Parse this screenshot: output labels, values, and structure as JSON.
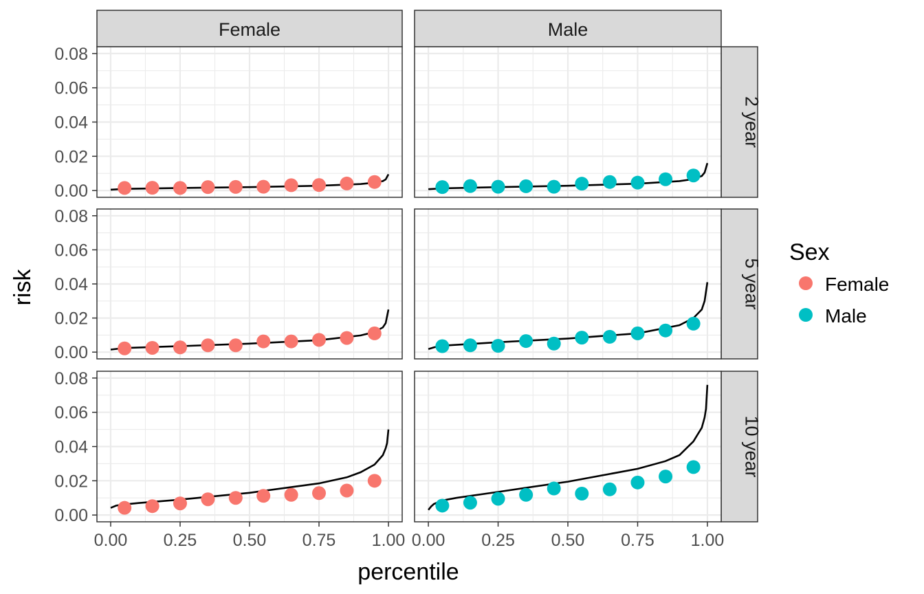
{
  "chart_data": {
    "type": "scatter",
    "facets": {
      "columns": [
        "Female",
        "Male"
      ],
      "rows": [
        "2 year",
        "5 year",
        "10 year"
      ]
    },
    "xlabel": "percentile",
    "ylabel": "risk",
    "xlim": [
      0,
      1
    ],
    "ylim": [
      0,
      0.08
    ],
    "x_ticks": [
      "0.00",
      "0.25",
      "0.50",
      "0.75",
      "1.00"
    ],
    "y_ticks": [
      "0.00",
      "0.02",
      "0.04",
      "0.06",
      "0.08"
    ],
    "x_points": [
      0.05,
      0.15,
      0.25,
      0.35,
      0.45,
      0.55,
      0.65,
      0.75,
      0.85,
      0.95
    ],
    "grid": true,
    "legend": {
      "title": "Sex",
      "position": "right",
      "entries": [
        {
          "label": "Female",
          "color": "#F8766D"
        },
        {
          "label": "Male",
          "color": "#00BFC4"
        }
      ]
    },
    "panels": [
      {
        "row": "2 year",
        "column": "Female",
        "points": [
          0.0015,
          0.0016,
          0.0015,
          0.002,
          0.0021,
          0.0022,
          0.0031,
          0.0032,
          0.0041,
          0.005
        ],
        "errors": [
          0,
          0,
          0,
          0,
          0,
          0,
          0,
          0,
          0,
          0
        ],
        "curve": {
          "x": [
            0,
            0.05,
            0.25,
            0.5,
            0.75,
            0.9,
            0.95,
            0.98,
            0.99,
            1.0
          ],
          "y": [
            0.0005,
            0.001,
            0.0015,
            0.002,
            0.0028,
            0.0038,
            0.0046,
            0.0055,
            0.0065,
            0.0095
          ]
        }
      },
      {
        "row": "2 year",
        "column": "Male",
        "points": [
          0.002,
          0.0026,
          0.0022,
          0.0025,
          0.0022,
          0.004,
          0.005,
          0.0046,
          0.0066,
          0.0088
        ],
        "errors": [
          0,
          0,
          0,
          0,
          0,
          0,
          0,
          0,
          0,
          0
        ],
        "curve": {
          "x": [
            0,
            0.05,
            0.25,
            0.5,
            0.75,
            0.9,
            0.95,
            0.98,
            0.99,
            1.0
          ],
          "y": [
            0.0008,
            0.0013,
            0.002,
            0.0028,
            0.004,
            0.0055,
            0.0067,
            0.0085,
            0.0105,
            0.016
          ]
        }
      },
      {
        "row": "5 year",
        "column": "Female",
        "points": [
          0.0022,
          0.0025,
          0.0028,
          0.004,
          0.004,
          0.0063,
          0.0063,
          0.0072,
          0.0083,
          0.011
        ],
        "errors": [
          0,
          0,
          0,
          0,
          0,
          0,
          0,
          0,
          0,
          0.0008
        ],
        "curve": {
          "x": [
            0,
            0.05,
            0.25,
            0.5,
            0.75,
            0.9,
            0.95,
            0.98,
            0.99,
            1.0
          ],
          "y": [
            0.0015,
            0.0024,
            0.0035,
            0.005,
            0.007,
            0.0098,
            0.0118,
            0.0145,
            0.017,
            0.025
          ]
        }
      },
      {
        "row": "5 year",
        "column": "Male",
        "points": [
          0.0035,
          0.004,
          0.0037,
          0.0065,
          0.005,
          0.0085,
          0.009,
          0.011,
          0.0127,
          0.0167
        ],
        "errors": [
          0,
          0,
          0,
          0,
          0,
          0,
          0,
          0,
          0.0008,
          0.001
        ],
        "curve": {
          "x": [
            0,
            0.02,
            0.05,
            0.25,
            0.5,
            0.75,
            0.9,
            0.95,
            0.98,
            0.99,
            1.0
          ],
          "y": [
            0.0018,
            0.0028,
            0.0038,
            0.0058,
            0.008,
            0.011,
            0.0158,
            0.02,
            0.025,
            0.03,
            0.041
          ]
        }
      },
      {
        "row": "10 year",
        "column": "Female",
        "points": [
          0.0042,
          0.0052,
          0.0068,
          0.0092,
          0.01,
          0.0112,
          0.0118,
          0.0128,
          0.0143,
          0.02
        ],
        "errors": [
          0,
          0,
          0,
          0,
          0,
          0,
          0,
          0,
          0,
          0.0018
        ],
        "curve": {
          "x": [
            0,
            0.02,
            0.05,
            0.1,
            0.25,
            0.5,
            0.75,
            0.85,
            0.9,
            0.95,
            0.98,
            0.99,
            0.995,
            1.0
          ],
          "y": [
            0.0042,
            0.0055,
            0.0062,
            0.007,
            0.009,
            0.013,
            0.0185,
            0.022,
            0.025,
            0.0295,
            0.035,
            0.039,
            0.042,
            0.05
          ]
        }
      },
      {
        "row": "10 year",
        "column": "Male",
        "points": [
          0.0055,
          0.0072,
          0.0095,
          0.0118,
          0.0155,
          0.0125,
          0.015,
          0.019,
          0.0225,
          0.028
        ],
        "errors": [
          0,
          0,
          0,
          0,
          0,
          0,
          0.0012,
          0.0015,
          0.002,
          0.0025
        ],
        "curve": {
          "x": [
            0,
            0.01,
            0.02,
            0.05,
            0.1,
            0.25,
            0.5,
            0.75,
            0.85,
            0.9,
            0.95,
            0.98,
            0.99,
            0.995,
            1.0
          ],
          "y": [
            0.003,
            0.005,
            0.0065,
            0.0085,
            0.01,
            0.0135,
            0.0195,
            0.027,
            0.0315,
            0.035,
            0.043,
            0.051,
            0.057,
            0.062,
            0.076
          ]
        }
      }
    ]
  }
}
